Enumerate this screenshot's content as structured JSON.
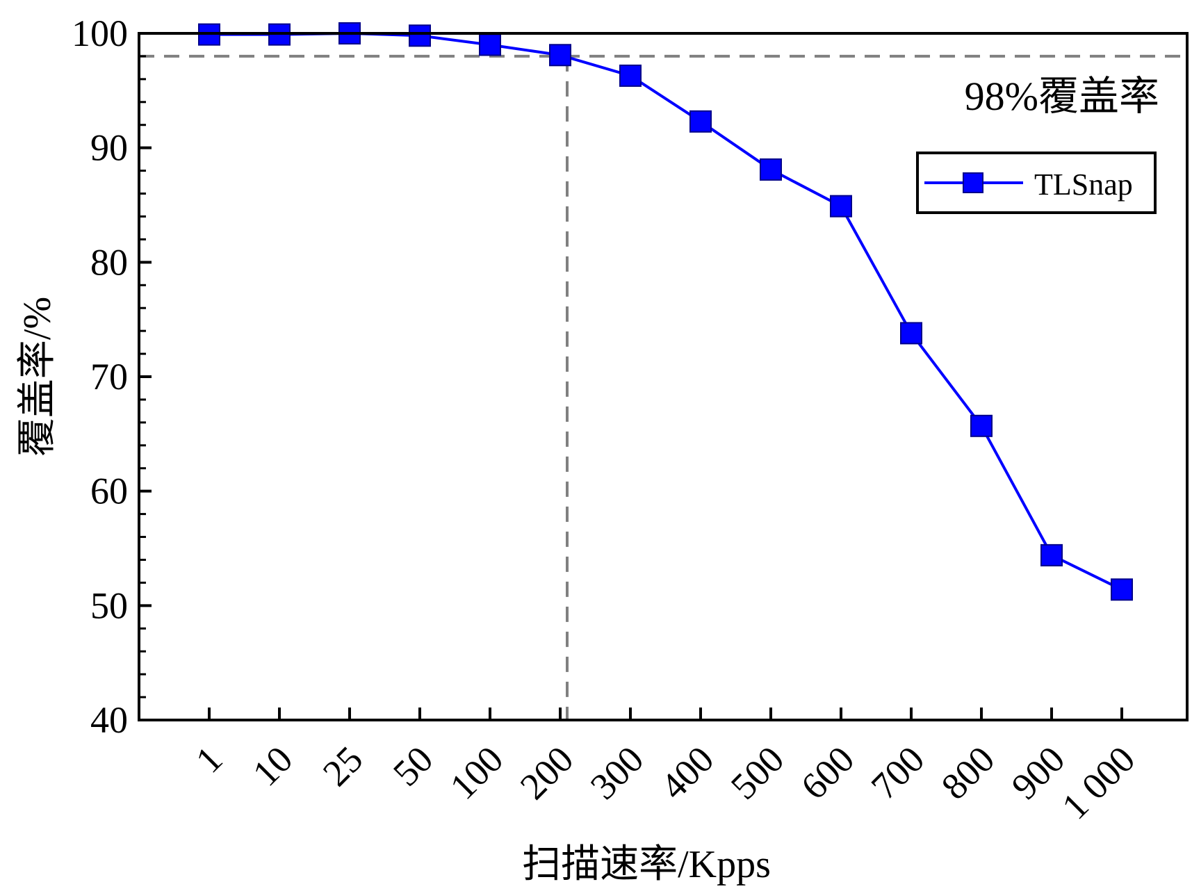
{
  "chart_data": {
    "type": "line",
    "categories": [
      "1",
      "10",
      "25",
      "50",
      "100",
      "200",
      "300",
      "400",
      "500",
      "600",
      "700",
      "800",
      "900",
      "1 000"
    ],
    "series": [
      {
        "name": "TLSnap",
        "values": [
          99.9,
          99.9,
          100.0,
          99.8,
          99.0,
          98.1,
          96.3,
          92.3,
          88.1,
          84.9,
          73.8,
          65.7,
          54.4,
          51.4
        ],
        "color": "#0000ff"
      }
    ],
    "xlabel": "扫描速率/Kpps",
    "ylabel": "覆盖率/%",
    "ylim": [
      40,
      100
    ],
    "yticks": [
      40,
      50,
      60,
      70,
      80,
      90,
      100
    ],
    "reference_line": {
      "y": 98,
      "x_category": "200",
      "label": "98%覆盖率",
      "color": "#808080"
    },
    "legend_position": "top-right",
    "grid": false
  }
}
